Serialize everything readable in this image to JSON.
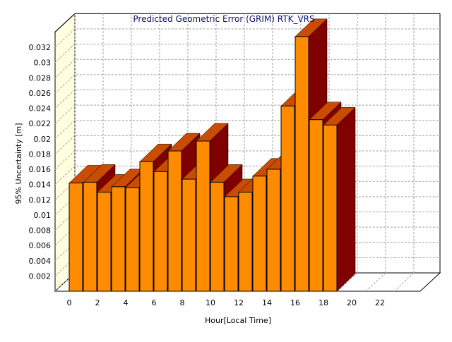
{
  "chart_data": {
    "type": "bar",
    "title": "Predicted Geometric Error (GRIM) RTK_VRS",
    "xlabel": "Hour[Local Time]",
    "ylabel": "95% Uncertainty [m]",
    "categories": [
      0,
      1,
      2,
      3,
      4,
      5,
      6,
      7,
      8,
      9,
      10,
      11,
      12,
      13,
      14,
      15,
      16,
      17,
      18,
      19,
      20,
      21,
      22,
      23
    ],
    "x_tick_labels": [
      "0",
      "2",
      "4",
      "6",
      "8",
      "10",
      "12",
      "14",
      "16",
      "18",
      "20",
      "22"
    ],
    "y_tick_labels": [
      "0.002",
      "0.004",
      "0.006",
      "0.008",
      "0.01",
      "0.012",
      "0.014",
      "0.016",
      "0.018",
      "0.02",
      "0.022",
      "0.024",
      "0.026",
      "0.028",
      "0.03",
      "0.032"
    ],
    "values": [
      0.0142,
      0.0143,
      0.013,
      0.0137,
      0.0136,
      0.017,
      0.0157,
      0.0184,
      0.0147,
      0.0197,
      0.0143,
      0.0124,
      0.013,
      0.0151,
      0.016,
      0.0243,
      0.0334,
      0.0225,
      0.0218,
      null,
      null,
      null,
      null,
      null
    ],
    "ylim": [
      0,
      0.034
    ],
    "grid": true,
    "legend": "none",
    "style": "3d",
    "colors": {
      "bar_front": "#ff8c00",
      "bar_top": "#c94c00",
      "bar_side": "#800000",
      "back_wall": "#ffffff",
      "side_wall": "#ffffe0",
      "grid": "#a0a0a0",
      "title": "#10106e"
    }
  }
}
